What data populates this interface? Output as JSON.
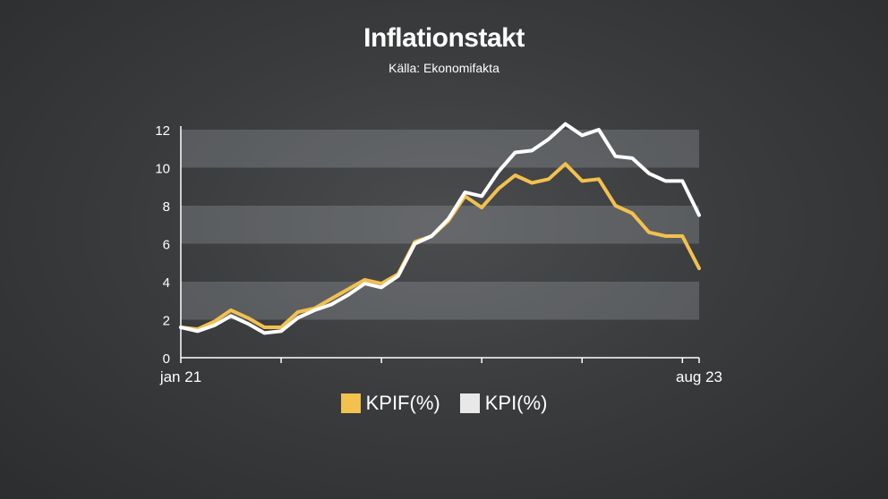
{
  "title": "Inflationstakt",
  "source": "Källa: Ekonomifakta",
  "legend": [
    {
      "label": "KPIF(%)",
      "color": "#f2c14e"
    },
    {
      "label": "KPI(%)",
      "color": "#e8e8e8"
    }
  ],
  "chart_data": {
    "type": "line",
    "title": "Inflationstakt",
    "x_start_label": "jan 21",
    "x_end_label": "aug 23",
    "x": [
      "2021-01",
      "2021-02",
      "2021-03",
      "2021-04",
      "2021-05",
      "2021-06",
      "2021-07",
      "2021-08",
      "2021-09",
      "2021-10",
      "2021-11",
      "2021-12",
      "2022-01",
      "2022-02",
      "2022-03",
      "2022-04",
      "2022-05",
      "2022-06",
      "2022-07",
      "2022-08",
      "2022-09",
      "2022-10",
      "2022-11",
      "2022-12",
      "2023-01",
      "2023-02",
      "2023-03",
      "2023-04",
      "2023-05",
      "2023-06",
      "2023-07",
      "2023-08"
    ],
    "ylim": [
      0,
      12
    ],
    "yticks": [
      0,
      2,
      4,
      6,
      8,
      10,
      12
    ],
    "grid_bands": [
      [
        2,
        4
      ],
      [
        6,
        8
      ],
      [
        10,
        12
      ]
    ],
    "series": [
      {
        "name": "KPIF(%)",
        "color": "#f2c14e",
        "values": [
          1.6,
          1.5,
          1.9,
          2.5,
          2.1,
          1.6,
          1.6,
          2.4,
          2.6,
          3.1,
          3.6,
          4.1,
          3.9,
          4.4,
          6.1,
          6.4,
          7.2,
          8.5,
          7.9,
          8.9,
          9.6,
          9.2,
          9.4,
          10.2,
          9.3,
          9.4,
          8.0,
          7.6,
          6.6,
          6.4,
          6.4,
          4.7
        ]
      },
      {
        "name": "KPI(%)",
        "color": "#ffffff",
        "values": [
          1.6,
          1.4,
          1.7,
          2.2,
          1.8,
          1.3,
          1.4,
          2.1,
          2.5,
          2.8,
          3.3,
          3.9,
          3.7,
          4.3,
          6.0,
          6.4,
          7.3,
          8.7,
          8.5,
          9.8,
          10.8,
          10.9,
          11.5,
          12.3,
          11.7,
          12.0,
          10.6,
          10.5,
          9.7,
          9.3,
          9.3,
          7.5
        ]
      }
    ]
  }
}
